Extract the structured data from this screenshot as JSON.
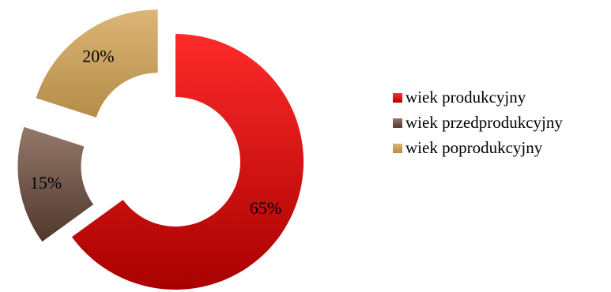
{
  "chart_data": {
    "type": "pie",
    "style": "exploded doughnut",
    "categories": [
      "wiek produkcyjny",
      "wiek przedprodukcyjny",
      "wiek poprodukcyjny"
    ],
    "values": [
      65,
      15,
      20
    ],
    "data_labels": [
      "65%",
      "15%",
      "20%"
    ],
    "colors": [
      "#d40b0b",
      "#6e5648",
      "#c9a462"
    ],
    "legend_position": "right",
    "title": ""
  }
}
